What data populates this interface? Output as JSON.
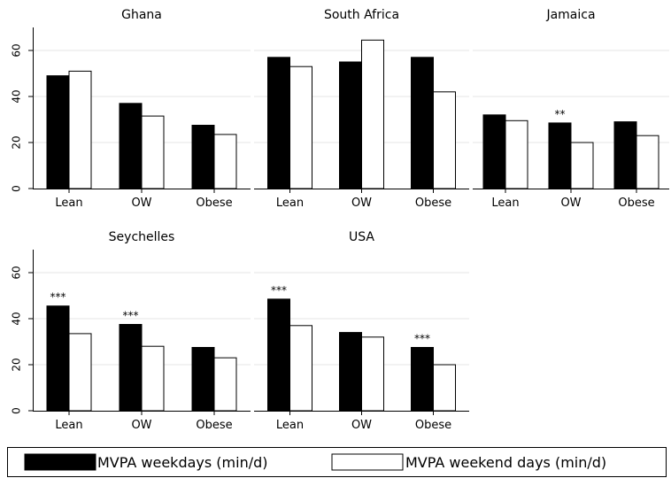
{
  "chart_data": {
    "type": "bar",
    "categories": [
      "Lean",
      "OW",
      "Obese"
    ],
    "yticks": [
      0,
      20,
      40,
      60
    ],
    "ylim": [
      0,
      70
    ],
    "grid": true,
    "legend": {
      "placement": "bottom",
      "series": [
        {
          "name": "MVPA weekdays (min/d)",
          "color": "#000000"
        },
        {
          "name": "MVPA weekend days (min/d)",
          "color": "#ffffff"
        }
      ]
    },
    "panels": [
      {
        "title": "Ghana",
        "series": [
          {
            "values": [
              49,
              37,
              27.5
            ]
          },
          {
            "values": [
              51,
              31.5,
              23.5
            ]
          }
        ],
        "annotations": [
          "",
          "",
          ""
        ]
      },
      {
        "title": "South Africa",
        "series": [
          {
            "values": [
              57,
              55,
              57
            ]
          },
          {
            "values": [
              53,
              64.5,
              42
            ]
          }
        ],
        "annotations": [
          "",
          "",
          ""
        ]
      },
      {
        "title": "Jamaica",
        "series": [
          {
            "values": [
              32,
              28.5,
              29
            ]
          },
          {
            "values": [
              29.5,
              20,
              23
            ]
          }
        ],
        "annotations": [
          "",
          "**",
          ""
        ]
      },
      {
        "title": "Seychelles",
        "series": [
          {
            "values": [
              45.5,
              37.5,
              27.5
            ]
          },
          {
            "values": [
              33.5,
              28,
              23
            ]
          }
        ],
        "annotations": [
          "***",
          "***",
          ""
        ]
      },
      {
        "title": "USA",
        "series": [
          {
            "values": [
              48.5,
              34,
              27.5
            ]
          },
          {
            "values": [
              37,
              32,
              20
            ]
          }
        ],
        "annotations": [
          "***",
          "",
          "***"
        ]
      }
    ]
  }
}
